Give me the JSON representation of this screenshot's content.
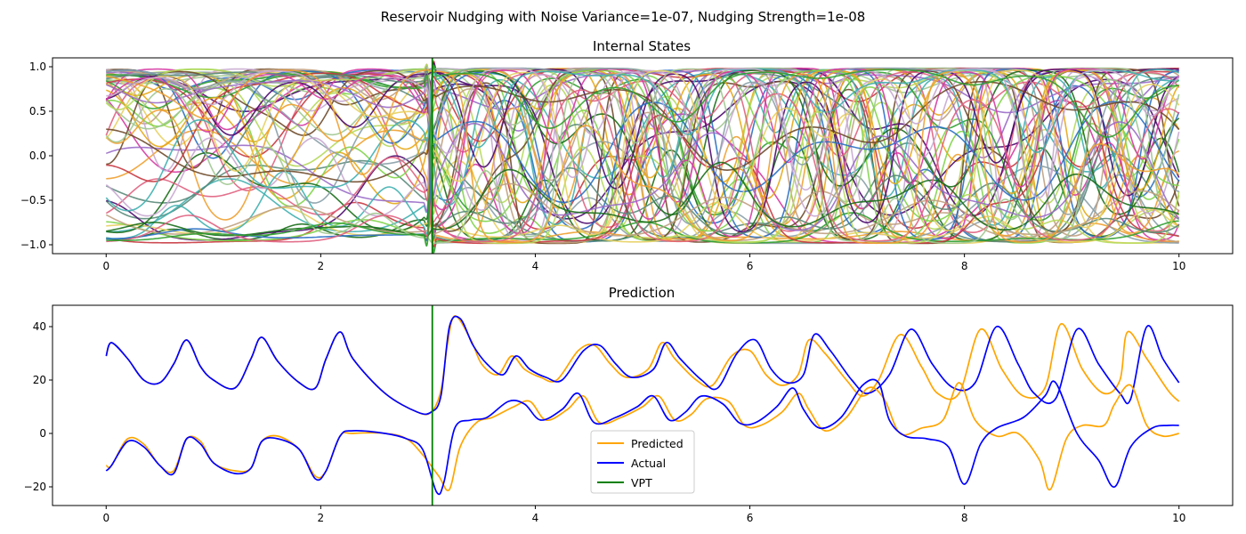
{
  "figure": {
    "suptitle": "Reservoir Nudging with Noise Variance=1e-07, Nudging Strength=1e-08"
  },
  "chart_data": [
    {
      "type": "line",
      "title": "Internal States",
      "xlabel": "",
      "ylabel": "",
      "xlim": [
        -0.5,
        10.5
      ],
      "ylim": [
        -1.1,
        1.1
      ],
      "xticks": [
        0,
        2,
        4,
        6,
        8,
        10
      ],
      "yticks": [
        -1.0,
        -0.5,
        0.0,
        0.5,
        1.0
      ],
      "xtick_labels": [
        "0",
        "2",
        "4",
        "6",
        "8",
        "10"
      ],
      "ytick_labels": [
        "−1.0",
        "−0.5",
        "0.0",
        "0.5",
        "1.0"
      ],
      "grid": false,
      "vline": {
        "x": 3.04,
        "color": "#008000"
      },
      "series_count": 60,
      "series_note": "many reservoir node traces, each in [-1, 1], one per internal state",
      "palette": [
        "#c8373f",
        "#e6a817",
        "#b5d95a",
        "#7fd44a",
        "#4b0a6e",
        "#d63aa3",
        "#8aa0a8",
        "#5a8a7a",
        "#c0a080",
        "#2a6fc4",
        "#e8d060",
        "#9a6bc8",
        "#6e4a2a",
        "#1a6e1a",
        "#a0c890",
        "#e06080",
        "#40b0b0",
        "#f0a030",
        "#c8a8d0",
        "#30a030"
      ]
    },
    {
      "type": "line",
      "title": "Prediction",
      "xlabel": "",
      "ylabel": "",
      "xlim": [
        -0.5,
        10.5
      ],
      "ylim": [
        -27,
        48
      ],
      "xticks": [
        0,
        2,
        4,
        6,
        8,
        10
      ],
      "yticks": [
        -20,
        0,
        20,
        40
      ],
      "xtick_labels": [
        "0",
        "2",
        "4",
        "6",
        "8",
        "10"
      ],
      "ytick_labels": [
        "−20",
        "0",
        "20",
        "40"
      ],
      "grid": false,
      "vline": {
        "x": 3.04
      },
      "legend": {
        "placement": "lower-center",
        "entries": [
          {
            "label": "Predicted",
            "color": "#ffa500"
          },
          {
            "label": "Actual",
            "color": "#0000ff"
          },
          {
            "label": "VPT",
            "color": "#008000"
          }
        ]
      },
      "series": [
        {
          "name": "Predicted",
          "component": "z",
          "color": "#ffa500",
          "x": [
            0,
            0.05,
            0.2,
            0.35,
            0.5,
            0.63,
            0.75,
            0.88,
            1.0,
            1.2,
            1.35,
            1.45,
            1.6,
            1.8,
            1.95,
            2.05,
            2.18,
            2.3,
            2.6,
            2.9,
            3.03,
            3.12,
            3.18,
            3.25,
            3.4,
            3.5,
            3.65,
            3.78,
            3.9,
            4.05,
            4.2,
            4.4,
            4.55,
            4.7,
            4.85,
            5.05,
            5.18,
            5.3,
            5.5,
            5.65,
            5.83,
            6.0,
            6.15,
            6.3,
            6.45,
            6.55,
            6.7,
            6.9,
            7.05,
            7.2,
            7.4,
            7.6,
            7.75,
            7.95,
            8.15,
            8.35,
            8.55,
            8.75,
            8.9,
            9.1,
            9.3,
            9.45,
            9.52,
            9.7,
            9.9,
            10.0
          ],
          "y": [
            29,
            34,
            28,
            20,
            19,
            26,
            35,
            25,
            20,
            17,
            28,
            36,
            27,
            19,
            17,
            28,
            38,
            28,
            15,
            8,
            8,
            16,
            33,
            44,
            35,
            26,
            22,
            29,
            24,
            21,
            20,
            31,
            33,
            26,
            21,
            24,
            34,
            28,
            20,
            18,
            29,
            31,
            22,
            18,
            22,
            35,
            30,
            20,
            14,
            20,
            37,
            25,
            15,
            15,
            39,
            24,
            14,
            17,
            41,
            24,
            15,
            20,
            38,
            28,
            16,
            12
          ]
        },
        {
          "name": "Actual",
          "component": "z",
          "color": "#0000ff",
          "x": [
            0,
            0.05,
            0.2,
            0.35,
            0.5,
            0.63,
            0.75,
            0.88,
            1.0,
            1.2,
            1.35,
            1.45,
            1.6,
            1.8,
            1.95,
            2.05,
            2.18,
            2.3,
            2.6,
            2.9,
            3.03,
            3.12,
            3.2,
            3.3,
            3.42,
            3.55,
            3.7,
            3.82,
            3.95,
            4.1,
            4.25,
            4.45,
            4.6,
            4.75,
            4.9,
            5.1,
            5.22,
            5.35,
            5.55,
            5.7,
            5.88,
            6.05,
            6.2,
            6.35,
            6.5,
            6.6,
            6.75,
            6.95,
            7.1,
            7.3,
            7.5,
            7.7,
            7.9,
            8.1,
            8.3,
            8.5,
            8.65,
            8.85,
            9.05,
            9.25,
            9.45,
            9.55,
            9.7,
            9.85,
            10.0
          ],
          "y": [
            29,
            34,
            28,
            20,
            19,
            26,
            35,
            25,
            20,
            17,
            28,
            36,
            27,
            19,
            17,
            28,
            38,
            28,
            15,
            8,
            8,
            14,
            40,
            43,
            33,
            26,
            22,
            29,
            24,
            21,
            20,
            31,
            33,
            26,
            21,
            24,
            34,
            28,
            20,
            17,
            30,
            35,
            24,
            19,
            22,
            37,
            31,
            20,
            15,
            22,
            39,
            26,
            17,
            19,
            40,
            26,
            15,
            13,
            39,
            26,
            15,
            13,
            40,
            28,
            19
          ]
        },
        {
          "name": "Predicted",
          "component": "x",
          "color": "#ffa500",
          "x": [
            0,
            0.05,
            0.2,
            0.35,
            0.5,
            0.63,
            0.75,
            0.88,
            1.0,
            1.2,
            1.35,
            1.45,
            1.6,
            1.8,
            1.95,
            2.05,
            2.18,
            2.3,
            2.6,
            2.8,
            2.95,
            3.1,
            3.2,
            3.3,
            3.45,
            3.6,
            3.8,
            3.95,
            4.1,
            4.3,
            4.45,
            4.6,
            4.8,
            5.0,
            5.15,
            5.3,
            5.45,
            5.6,
            5.8,
            5.95,
            6.1,
            6.3,
            6.45,
            6.55,
            6.7,
            6.9,
            7.1,
            7.25,
            7.4,
            7.6,
            7.8,
            7.95,
            8.1,
            8.3,
            8.5,
            8.7,
            8.8,
            8.95,
            9.1,
            9.3,
            9.4,
            9.55,
            9.7,
            9.85,
            10.0
          ],
          "y": [
            -12,
            -12,
            -2,
            -4,
            -12,
            -14,
            -2,
            -3,
            -11,
            -14,
            -13,
            -3,
            -1,
            -6,
            -16,
            -14,
            -1,
            0,
            0,
            -2,
            -8,
            -16,
            -21,
            -5,
            4,
            6,
            10,
            12,
            5,
            9,
            14,
            4,
            6,
            10,
            14,
            5,
            7,
            13,
            12,
            3,
            3,
            8,
            15,
            9,
            1,
            6,
            17,
            13,
            0,
            2,
            5,
            19,
            5,
            -1,
            0,
            -10,
            -21,
            -2,
            3,
            3,
            11,
            18,
            3,
            -1,
            0
          ]
        },
        {
          "name": "Actual",
          "component": "x",
          "color": "#0000ff",
          "x": [
            0,
            0.05,
            0.2,
            0.35,
            0.5,
            0.63,
            0.75,
            0.88,
            1.0,
            1.2,
            1.35,
            1.45,
            1.6,
            1.8,
            1.95,
            2.05,
            2.18,
            2.3,
            2.6,
            2.8,
            2.95,
            3.08,
            3.15,
            3.25,
            3.4,
            3.55,
            3.75,
            3.9,
            4.05,
            4.25,
            4.4,
            4.55,
            4.75,
            4.95,
            5.1,
            5.25,
            5.4,
            5.55,
            5.75,
            5.9,
            6.05,
            6.25,
            6.4,
            6.5,
            6.65,
            6.85,
            7.05,
            7.2,
            7.3,
            7.45,
            7.65,
            7.85,
            8.0,
            8.15,
            8.3,
            8.55,
            8.75,
            8.85,
            9.05,
            9.25,
            9.4,
            9.55,
            9.75,
            9.9,
            10.0
          ],
          "y": [
            -14,
            -12,
            -3,
            -5,
            -12,
            -15,
            -2,
            -4,
            -11,
            -15,
            -13,
            -3,
            -2,
            -6,
            -17,
            -14,
            -1,
            1,
            0,
            -2,
            -6,
            -22,
            -18,
            2,
            5,
            6,
            12,
            11,
            5,
            9,
            15,
            4,
            6,
            10,
            14,
            5,
            8,
            14,
            11,
            4,
            4,
            10,
            17,
            9,
            2,
            6,
            18,
            19,
            5,
            -1,
            -2,
            -5,
            -19,
            -4,
            2,
            6,
            14,
            19,
            0,
            -10,
            -20,
            -5,
            2,
            3,
            3
          ]
        }
      ]
    }
  ]
}
